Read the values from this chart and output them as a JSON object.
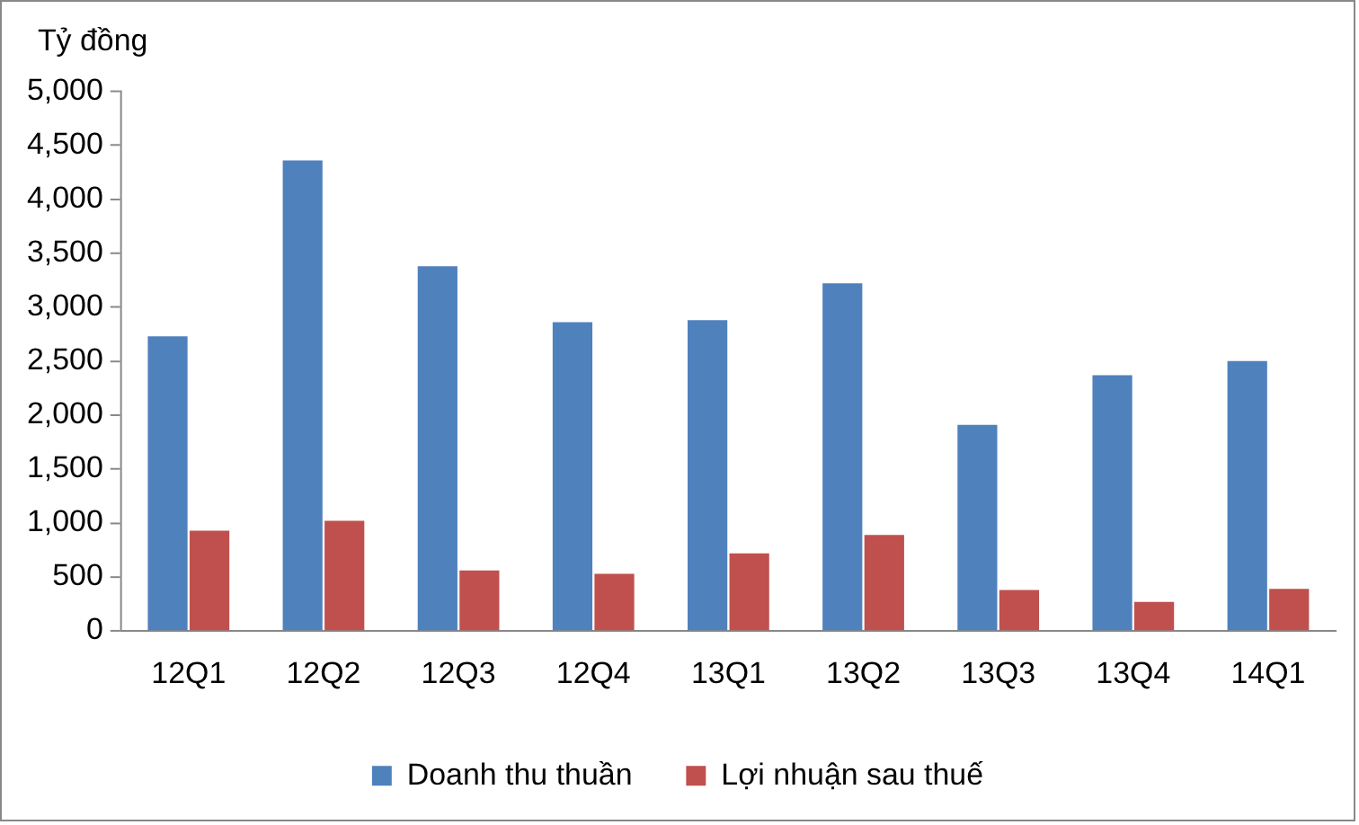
{
  "chart_data": {
    "type": "bar",
    "ylabel": "Tỷ đồng",
    "categories": [
      "12Q1",
      "12Q2",
      "12Q3",
      "12Q4",
      "13Q1",
      "13Q2",
      "13Q3",
      "13Q4",
      "14Q1"
    ],
    "series": [
      {
        "name": "Doanh thu thuần",
        "color": "#4f81bd",
        "values": [
          2730,
          4360,
          3380,
          2860,
          2880,
          3220,
          1910,
          2370,
          2500
        ]
      },
      {
        "name": "Lợi nhuận sau thuế",
        "color": "#c0504d",
        "values": [
          930,
          1020,
          560,
          530,
          720,
          890,
          380,
          270,
          390
        ]
      }
    ],
    "ylim": [
      0,
      5000
    ],
    "yticks": [
      {
        "value": 0,
        "label": "0"
      },
      {
        "value": 500,
        "label": "500"
      },
      {
        "value": 1000,
        "label": "1,000"
      },
      {
        "value": 1500,
        "label": "1,500"
      },
      {
        "value": 2000,
        "label": "2,000"
      },
      {
        "value": 2500,
        "label": "2,500"
      },
      {
        "value": 3000,
        "label": "3,000"
      },
      {
        "value": 3500,
        "label": "3,500"
      },
      {
        "value": 4000,
        "label": "4,000"
      },
      {
        "value": 4500,
        "label": "4,500"
      },
      {
        "value": 5000,
        "label": "5,000"
      }
    ],
    "grid": false,
    "legend": "bottom"
  }
}
